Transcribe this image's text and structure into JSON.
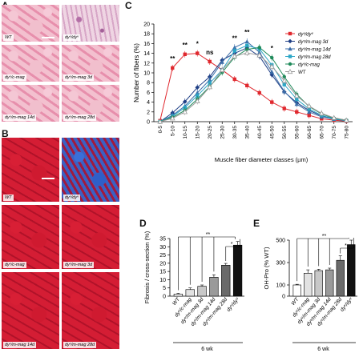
{
  "panels": {
    "A": {
      "letter": "A",
      "tiles": [
        {
          "label": "WT"
        },
        {
          "label": "dyᵛ/dyᵛ"
        },
        {
          "label": "dyᵛ/c-mag"
        },
        {
          "label": "dyᵛ/m-mag 3d"
        },
        {
          "label": "dyᵛ/m-mag 14d"
        },
        {
          "label": "dyᵛ/m-mag 28d"
        }
      ]
    },
    "B": {
      "letter": "B",
      "tiles": [
        {
          "label": "WT"
        },
        {
          "label": "dyᵛ/dyᵛ"
        },
        {
          "label": "dyᵛ/c-mag"
        },
        {
          "label": "dyᵛ/m-mag 3d"
        },
        {
          "label": "dyᵛ/m-mag 14d"
        },
        {
          "label": "dyᵛ/m-mag 28d"
        }
      ]
    },
    "C": {
      "letter": "C"
    },
    "D": {
      "letter": "D"
    },
    "E": {
      "letter": "E"
    }
  },
  "chart_data": [
    {
      "type": "line",
      "ylabel": "Number of fibers (%)",
      "xlabel": "Muscle fiber diameter classes (µm)",
      "ylim": [
        0,
        20
      ],
      "yticks": [
        "0",
        "2",
        "4",
        "6",
        "8",
        "10",
        "12",
        "14",
        "16",
        "18",
        "20"
      ],
      "categories": [
        "0-5",
        "5-10",
        "10-15",
        "15-20",
        "20-25",
        "25-30",
        "30-35",
        "35-40",
        "40-45",
        "45-50",
        "50-55",
        "55-60",
        "60-65",
        "65-70",
        "70-75",
        "75-80"
      ],
      "significance": [
        {
          "category": "5-10",
          "text": "**"
        },
        {
          "category": "10-15",
          "text": "**"
        },
        {
          "category": "15-20",
          "text": "*"
        },
        {
          "category": "20-25",
          "text": "ns"
        },
        {
          "category": "30-35",
          "text": "**"
        },
        {
          "category": "35-40",
          "text": "**"
        },
        {
          "category": "45-50",
          "text": "*"
        }
      ],
      "series": [
        {
          "name": "dyᵛ/dyᵛ",
          "color": "#e0282e",
          "marker": "square",
          "values": [
            0.2,
            11.0,
            13.8,
            14.0,
            12.3,
            10.6,
            8.7,
            7.4,
            5.9,
            4.0,
            2.7,
            2.0,
            1.3,
            0.6,
            0.3,
            0.1
          ]
        },
        {
          "name": "dyᵛ/m-mag 3d",
          "color": "#1f3f86",
          "marker": "diamond",
          "values": [
            0,
            1.8,
            4.1,
            7.0,
            9.2,
            12.6,
            14.0,
            15.1,
            13.4,
            9.6,
            6.1,
            3.9,
            2.3,
            1.2,
            0.6,
            0.3
          ]
        },
        {
          "name": "dyᵛ/m-mag 14d",
          "color": "#3b6da8",
          "marker": "triangle",
          "values": [
            0,
            1.3,
            3.2,
            5.9,
            8.6,
            12.2,
            15.2,
            16.4,
            14.2,
            10.2,
            6.2,
            3.6,
            2.0,
            1.0,
            0.5,
            0.2
          ]
        },
        {
          "name": "dyᵛ/m-mag 28d",
          "color": "#2ba6c6",
          "marker": "square",
          "values": [
            0,
            1.1,
            2.9,
            5.3,
            7.9,
            10.6,
            14.5,
            15.6,
            14.9,
            11.6,
            7.6,
            4.6,
            2.6,
            1.3,
            0.6,
            0.2
          ]
        },
        {
          "name": "dyᵛ/c-mag",
          "color": "#1f8a5a",
          "marker": "circle",
          "values": [
            0,
            0.9,
            2.3,
            4.6,
            7.2,
            10.1,
            13.2,
            14.8,
            15.2,
            13.1,
            9.2,
            5.6,
            3.1,
            1.6,
            0.7,
            0.3
          ]
        },
        {
          "name": "WT",
          "color": "#9a9a9a",
          "marker": "triangle-open",
          "values": [
            0,
            0.7,
            2.0,
            4.2,
            7.1,
            10.6,
            13.4,
            14.1,
            13.6,
            11.3,
            8.4,
            5.3,
            3.2,
            1.7,
            0.8,
            0.3
          ]
        }
      ]
    },
    {
      "type": "bar",
      "ylabel": "Fibrosis / cross-section (%)",
      "xlabel": "6 wk",
      "ylim": [
        0,
        35
      ],
      "yticks": [
        "0",
        "5",
        "10",
        "15",
        "20",
        "25",
        "30",
        "35"
      ],
      "categories": [
        "WT",
        "dyᵛ/c-mag",
        "dyᵛ/m-mag 3d",
        "dyᵛ/m-mag 14d",
        "dyᵛ/m-mag 28d",
        "dyᵛ/dyᵛ"
      ],
      "values": [
        1.3,
        4.0,
        6.0,
        11.5,
        18.8,
        31.0
      ],
      "errors": [
        0.4,
        1.0,
        0.8,
        1.5,
        1.1,
        2.2
      ],
      "colors": [
        "#ffffff",
        "#e2e2e2",
        "#c8c8c8",
        "#9a9a9a",
        "#6a6a6a",
        "#111111"
      ],
      "significance": [
        {
          "text": "**"
        },
        {
          "text": "*"
        }
      ]
    },
    {
      "type": "bar",
      "ylabel": "OH-Pro (% WT)",
      "xlabel": "6 wk",
      "ylim": [
        0,
        500
      ],
      "yticks": [
        "0",
        "100",
        "300",
        "500"
      ],
      "categories": [
        "WT",
        "dyᵛ/c-mag",
        "dyᵛ/m-mag 3d",
        "dyᵛ/m-mag 14d",
        "dyᵛ/m-mag 28d",
        "dyᵛ/dyᵛ"
      ],
      "values": [
        100,
        205,
        228,
        235,
        320,
        460
      ],
      "errors": [
        6,
        30,
        12,
        15,
        40,
        40
      ],
      "colors": [
        "#ffffff",
        "#e2e2e2",
        "#c8c8c8",
        "#9a9a9a",
        "#6a6a6a",
        "#111111"
      ],
      "significance": [
        {
          "text": "**"
        },
        {
          "text": "*"
        }
      ]
    }
  ]
}
